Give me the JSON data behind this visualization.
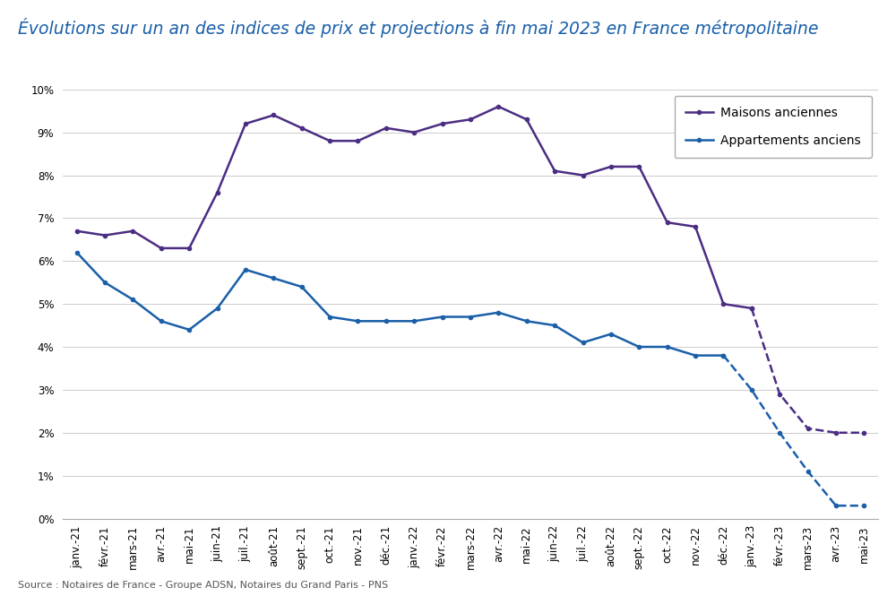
{
  "title": "Évolutions sur un an des indices de prix et projections à fin mai 2023 en France métropolitaine",
  "source": "Source : Notaires de France - Groupe ADSN, Notaires du Grand Paris - PNS",
  "labels": [
    "janv.-21",
    "févr.-21",
    "mars-21",
    "avr.-21",
    "mai-21",
    "juin-21",
    "juil.-21",
    "août-21",
    "sept.-21",
    "oct.-21",
    "nov.-21",
    "déc.-21",
    "janv.-22",
    "févr.-22",
    "mars-22",
    "avr.-22",
    "mai-22",
    "juin-22",
    "juil.-22",
    "août-22",
    "sept.-22",
    "oct.-22",
    "nov.-22",
    "déc.-22",
    "janv.-23",
    "févr.-23",
    "mars-23",
    "avr.-23",
    "mai-23"
  ],
  "maisons_solid": [
    6.7,
    6.6,
    6.7,
    6.3,
    6.3,
    7.6,
    9.2,
    9.4,
    9.1,
    8.8,
    8.8,
    9.1,
    9.0,
    9.2,
    9.3,
    9.6,
    9.3,
    8.1,
    8.0,
    8.2,
    8.2,
    6.9,
    6.8,
    5.0,
    4.9,
    null,
    null,
    null,
    null
  ],
  "maisons_dashed": [
    null,
    null,
    null,
    null,
    null,
    null,
    null,
    null,
    null,
    null,
    null,
    null,
    null,
    null,
    null,
    null,
    null,
    null,
    null,
    null,
    null,
    null,
    null,
    null,
    4.9,
    2.9,
    2.1,
    2.0,
    2.0
  ],
  "apparts_solid": [
    6.2,
    5.5,
    5.1,
    4.6,
    4.4,
    4.9,
    5.8,
    5.6,
    5.4,
    4.7,
    4.6,
    4.6,
    4.6,
    4.7,
    4.7,
    4.8,
    4.6,
    4.5,
    4.1,
    4.3,
    4.0,
    4.0,
    3.8,
    3.8,
    null,
    null,
    null,
    null,
    null
  ],
  "apparts_dashed": [
    null,
    null,
    null,
    null,
    null,
    null,
    null,
    null,
    null,
    null,
    null,
    null,
    null,
    null,
    null,
    null,
    null,
    null,
    null,
    null,
    null,
    null,
    null,
    3.8,
    3.0,
    2.0,
    1.1,
    0.3,
    0.3
  ],
  "maisons_color": "#4B2D83",
  "apparts_color": "#1A5FA8",
  "ylim": [
    0,
    10
  ],
  "yticks": [
    0,
    1,
    2,
    3,
    4,
    5,
    6,
    7,
    8,
    9,
    10
  ],
  "title_color": "#1A5FA8",
  "source_color": "#555555",
  "background_color": "#FFFFFF",
  "grid_color": "#CCCCCC",
  "linewidth": 1.8,
  "title_fontsize": 13.5,
  "legend_fontsize": 10,
  "tick_fontsize": 8.5
}
